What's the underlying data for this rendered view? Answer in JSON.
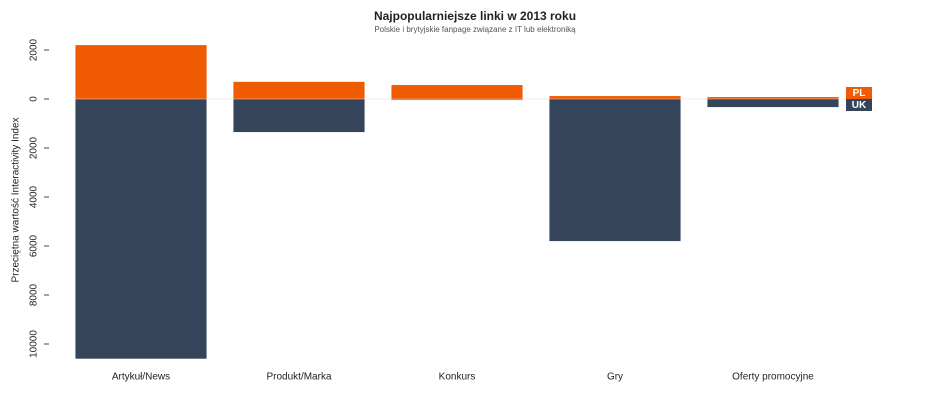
{
  "chart_data": {
    "type": "bar",
    "title": "Najpopularniejsze linki w 2013 roku",
    "subtitle": "Polskie i brytyjskie fanpage związane z IT lub elektroniką",
    "y_label": "Przeciętna wartość Interactivity Index",
    "categories": [
      "Artykuł/News",
      "Produkt/Marka",
      "Konkurs",
      "Gry",
      "Oferty promocyjne"
    ],
    "series": [
      {
        "name": "PL",
        "color": "#f05a00",
        "values": [
          2200,
          700,
          570,
          120,
          80
        ]
      },
      {
        "name": "UK",
        "color": "#34445a",
        "values": [
          -10600,
          -1350,
          -30,
          -5800,
          -330
        ]
      }
    ],
    "ylim": [
      -10600,
      2400
    ],
    "yticks": [
      {
        "value": 2000,
        "label": "2000"
      },
      0,
      {
        "value": -2000,
        "label": "2000"
      },
      {
        "value": -4000,
        "label": "4000"
      },
      {
        "value": -6000,
        "label": "6000"
      },
      {
        "value": -8000,
        "label": "8000"
      },
      {
        "value": -10000,
        "label": "10000"
      }
    ]
  }
}
